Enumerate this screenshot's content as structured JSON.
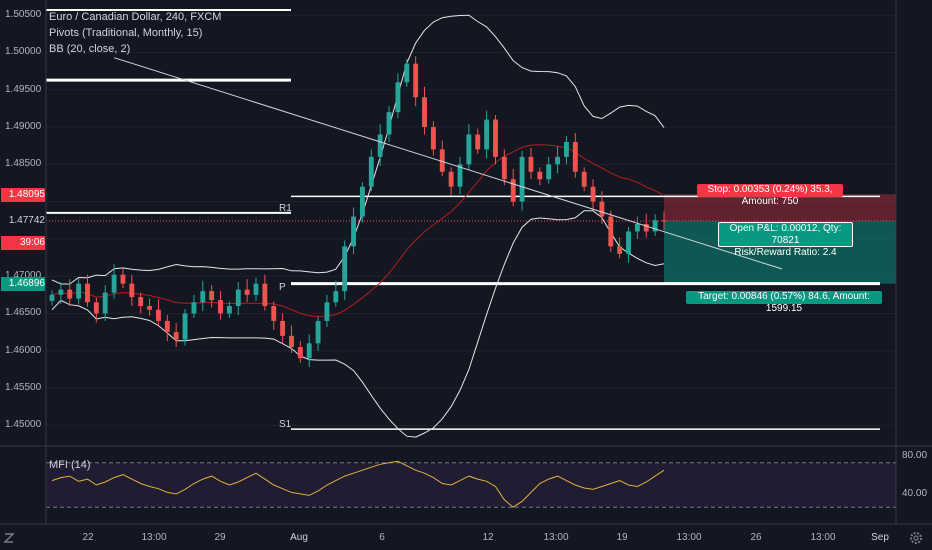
{
  "legend": {
    "symbol": "Euro / Canadian Dollar, 240, FXCM",
    "pivots": "Pivots (Traditional, Monthly, 15)",
    "bb": "BB (20, close, 2)",
    "mfi": "MFI (14)"
  },
  "price_ticks": [
    "1.50500",
    "1.50000",
    "1.49500",
    "1.49000",
    "1.48500",
    "1.47000",
    "1.46500",
    "1.46000",
    "1.45500",
    "1.45000"
  ],
  "price_tags": [
    {
      "text": "1.48095",
      "bg": "#f23645",
      "color": "#ffffff"
    },
    {
      "text": "1.47742",
      "bg": "#131722",
      "color": "#d1d4dc"
    },
    {
      "text": "39:06",
      "bg": "#f23645",
      "color": "#ffffff"
    },
    {
      "text": "1.46896",
      "bg": "#089981",
      "color": "#ffffff"
    }
  ],
  "x_ticks": [
    "22",
    "13:00",
    "29",
    "Aug",
    "6",
    "12",
    "13:00",
    "19",
    "13:00",
    "26",
    "13:00",
    "Sep"
  ],
  "pivot_labels": {
    "r1": "R1",
    "p": "P",
    "s1": "S1"
  },
  "trade": {
    "stop": "Stop: 0.00353 (0.24%) 35.3, Amount: 750",
    "pnl_line1": "Open P&L: 0.00012, Qty: 70821",
    "pnl_line2": "Risk/Reward Ratio: 2.4",
    "target": "Target: 0.00846 (0.57%) 84.6, Amount: 1599.15"
  },
  "mfi_ticks": [
    "80.00",
    "40.00"
  ],
  "colors": {
    "up": "#26a69a",
    "down": "#ef5350",
    "background": "#131722",
    "stop_zone": "#f23645",
    "target_zone": "#089981",
    "mfi_line": "#e0b13a",
    "mfi_band": "#2a1f3d"
  },
  "chart_data": {
    "type": "candlestick",
    "timeframe": "240",
    "y_range": [
      1.4475,
      1.5065
    ],
    "levels": {
      "R1": 1.4807,
      "P": 1.469,
      "S1": 1.4495,
      "high_line": 1.4963,
      "top_line": 1.5057
    },
    "trendline": [
      [
        7,
        1.4993
      ],
      [
        61,
        1.4757
      ]
    ],
    "close": [
      1.4675,
      1.4682,
      1.467,
      1.469,
      1.4665,
      1.465,
      1.4678,
      1.4702,
      1.469,
      1.4672,
      1.466,
      1.4655,
      1.464,
      1.4625,
      1.4615,
      1.465,
      1.4665,
      1.468,
      1.4668,
      1.465,
      1.466,
      1.4682,
      1.4675,
      1.469,
      1.466,
      1.464,
      1.462,
      1.4605,
      1.459,
      1.461,
      1.464,
      1.4665,
      1.468,
      1.474,
      1.478,
      1.482,
      1.486,
      1.489,
      1.492,
      1.496,
      1.4985,
      1.494,
      1.49,
      1.487,
      1.484,
      1.482,
      1.485,
      1.489,
      1.487,
      1.491,
      1.486,
      1.483,
      1.48,
      1.486,
      1.484,
      1.483,
      1.485,
      1.486,
      1.488,
      1.484,
      1.482,
      1.48,
      1.478,
      1.474,
      1.473,
      1.476,
      1.477,
      1.476,
      1.4775,
      1.4774
    ],
    "mfi": [
      56,
      60,
      62,
      55,
      58,
      50,
      54,
      60,
      64,
      58,
      52,
      48,
      45,
      40,
      38,
      44,
      52,
      58,
      62,
      55,
      50,
      54,
      60,
      66,
      58,
      50,
      45,
      40,
      38,
      36,
      42,
      50,
      56,
      62,
      66,
      70,
      74,
      78,
      80,
      82,
      76,
      70,
      66,
      60,
      52,
      50,
      56,
      62,
      58,
      55,
      48,
      30,
      20,
      28,
      40,
      52,
      58,
      62,
      56,
      50,
      46,
      44,
      48,
      52,
      56,
      50,
      48,
      54,
      62,
      70
    ]
  }
}
